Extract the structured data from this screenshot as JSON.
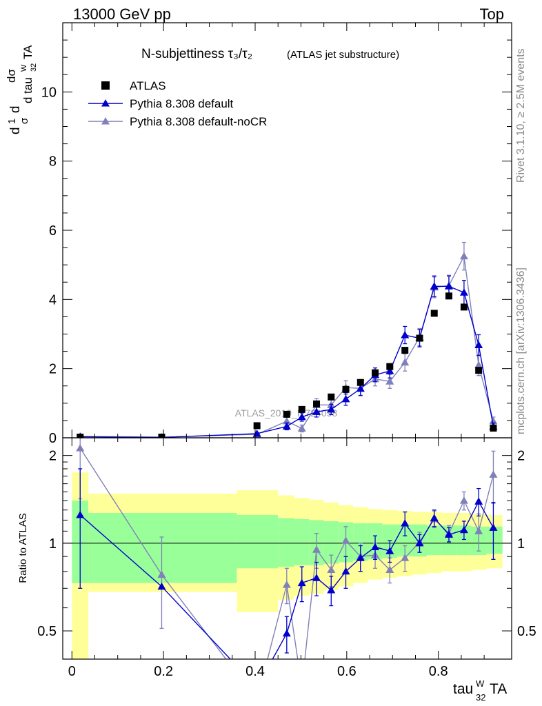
{
  "header": {
    "left": "13000 GeV pp",
    "right": "Top"
  },
  "side_labels": {
    "rivet": "Rivet 3.1.10, ≥ 2.5M events",
    "mcplots": "mcplots.cern.ch [arXiv:1306.3436]"
  },
  "plot_title": {
    "main": "N-subjettiness τ₃/τ₂",
    "note": "(ATLAS jet substructure)"
  },
  "watermark": "ATLAS_2019_I1724098",
  "chart_data": [
    {
      "type": "scatter",
      "panel": "main",
      "title": "N-subjettiness τ₃/τ₂ (ATLAS jet substructure)",
      "ylabel": "1/σ dσ/d tau^W_32 TA",
      "xlabel": "tau^W_32 TA",
      "xlim": [
        -0.02,
        0.96
      ],
      "ylim": [
        0,
        12
      ],
      "y_ticks": [
        0,
        2,
        4,
        6,
        8,
        10
      ],
      "legend_position": "top-left",
      "x": [
        0.018,
        0.196,
        0.404,
        0.469,
        0.502,
        0.534,
        0.566,
        0.598,
        0.63,
        0.662,
        0.694,
        0.727,
        0.759,
        0.791,
        0.823,
        0.856,
        0.888,
        0.92
      ],
      "series": [
        {
          "name": "ATLAS",
          "color": "#000000",
          "marker": "square",
          "values": [
            0.02,
            0.02,
            0.35,
            0.68,
            0.82,
            0.98,
            1.18,
            1.4,
            1.6,
            1.88,
            2.06,
            2.53,
            2.88,
            3.6,
            4.1,
            3.78,
            1.95,
            0.28
          ]
        },
        {
          "name": "Pythia 8.308 default",
          "color": "#0000cc",
          "marker": "triangle",
          "values": [
            0.03,
            0.01,
            0.12,
            0.33,
            0.6,
            0.75,
            0.82,
            1.12,
            1.42,
            1.82,
            1.93,
            2.97,
            2.88,
            4.38,
            4.38,
            4.2,
            2.68,
            0.33
          ],
          "errors": [
            0.0,
            0.0,
            0.03,
            0.1,
            0.12,
            0.15,
            0.15,
            0.18,
            0.2,
            0.2,
            0.2,
            0.25,
            0.25,
            0.3,
            0.3,
            0.35,
            0.3,
            0.1
          ]
        },
        {
          "name": "Pythia 8.308 default-noCR",
          "color": "#8080bb",
          "marker": "triangle",
          "values": [
            0.04,
            0.02,
            0.1,
            0.48,
            0.27,
            0.95,
            0.95,
            1.45,
            1.43,
            1.7,
            1.63,
            2.18,
            2.91,
            4.35,
            4.4,
            5.25,
            2.1,
            0.48
          ],
          "errors": [
            0.0,
            0.0,
            0.03,
            0.12,
            0.1,
            0.18,
            0.18,
            0.2,
            0.2,
            0.2,
            0.2,
            0.25,
            0.25,
            0.3,
            0.3,
            0.4,
            0.3,
            0.12
          ]
        }
      ]
    },
    {
      "type": "line",
      "panel": "ratio",
      "ylabel": "Ratio to ATLAS",
      "xlabel": "tau^W_32 TA",
      "xlim": [
        -0.02,
        0.96
      ],
      "ylim": [
        0.4,
        2.3
      ],
      "y_scale": "log",
      "y_ticks": [
        0.5,
        1,
        2
      ],
      "x_ticks": [
        0,
        0.2,
        0.4,
        0.6,
        0.8
      ],
      "x": [
        0.018,
        0.196,
        0.404,
        0.469,
        0.502,
        0.534,
        0.566,
        0.598,
        0.63,
        0.662,
        0.694,
        0.727,
        0.759,
        0.791,
        0.823,
        0.856,
        0.888,
        0.92
      ],
      "series": [
        {
          "name": "Pythia 8.308 default",
          "color": "#0000cc",
          "values": [
            1.25,
            0.71,
            0.32,
            0.49,
            0.73,
            0.76,
            0.69,
            0.8,
            0.89,
            0.97,
            0.94,
            1.17,
            1.0,
            1.22,
            1.07,
            1.11,
            1.39,
            1.13
          ],
          "err_lo": [
            0.55,
            0.0,
            0.0,
            0.07,
            0.1,
            0.1,
            0.08,
            0.1,
            0.09,
            0.09,
            0.08,
            0.11,
            0.07,
            0.08,
            0.06,
            0.08,
            0.15,
            0.25
          ],
          "err_hi": [
            0.55,
            0.0,
            0.0,
            0.07,
            0.1,
            0.1,
            0.08,
            0.1,
            0.09,
            0.09,
            0.08,
            0.11,
            0.07,
            0.08,
            0.06,
            0.08,
            0.15,
            0.25
          ]
        },
        {
          "name": "Pythia 8.308 default-noCR",
          "color": "#8080bb",
          "values": [
            2.12,
            0.78,
            0.29,
            0.72,
            0.32,
            0.95,
            0.81,
            1.02,
            0.9,
            0.91,
            0.81,
            0.89,
            1.01,
            1.21,
            1.08,
            1.4,
            1.1,
            1.72
          ],
          "err_lo": [
            0.7,
            0.27,
            0.0,
            0.1,
            0.08,
            0.13,
            0.1,
            0.12,
            0.1,
            0.09,
            0.08,
            0.09,
            0.08,
            0.08,
            0.07,
            0.1,
            0.16,
            0.35
          ],
          "err_hi": [
            0.7,
            0.27,
            0.0,
            0.1,
            0.08,
            0.13,
            0.1,
            0.12,
            0.1,
            0.09,
            0.08,
            0.09,
            0.08,
            0.08,
            0.07,
            0.1,
            0.16,
            0.35
          ]
        },
        {
          "name": "ATLAS uncertainty band",
          "bin_edges": [
            0.0,
            0.036,
            0.36,
            0.45,
            0.485,
            0.518,
            0.55,
            0.582,
            0.614,
            0.646,
            0.678,
            0.71,
            0.743,
            0.775,
            0.807,
            0.84,
            0.872,
            0.905,
            0.94
          ],
          "stat_lo": [
            0.73,
            0.73,
            0.82,
            0.83,
            0.84,
            0.84,
            0.85,
            0.86,
            0.87,
            0.88,
            0.89,
            0.9,
            0.9,
            0.91,
            0.91,
            0.91,
            0.91,
            0.92
          ],
          "stat_hi": [
            1.4,
            1.27,
            1.25,
            1.22,
            1.21,
            1.2,
            1.19,
            1.18,
            1.17,
            1.17,
            1.16,
            1.16,
            1.16,
            1.15,
            1.15,
            1.15,
            1.14,
            1.14
          ],
          "tot_lo": [
            0.3,
            0.68,
            0.58,
            0.64,
            0.66,
            0.67,
            0.69,
            0.71,
            0.73,
            0.75,
            0.76,
            0.77,
            0.78,
            0.79,
            0.8,
            0.8,
            0.81,
            0.82
          ],
          "tot_hi": [
            1.75,
            1.48,
            1.52,
            1.46,
            1.43,
            1.41,
            1.38,
            1.35,
            1.33,
            1.31,
            1.3,
            1.29,
            1.28,
            1.28,
            1.27,
            1.27,
            1.26,
            1.25
          ]
        }
      ]
    }
  ],
  "colors": {
    "data": "#000000",
    "default": "#0000cc",
    "noCR": "#8080bb",
    "band_stat": "#99ff99",
    "band_total": "#ffff99"
  }
}
